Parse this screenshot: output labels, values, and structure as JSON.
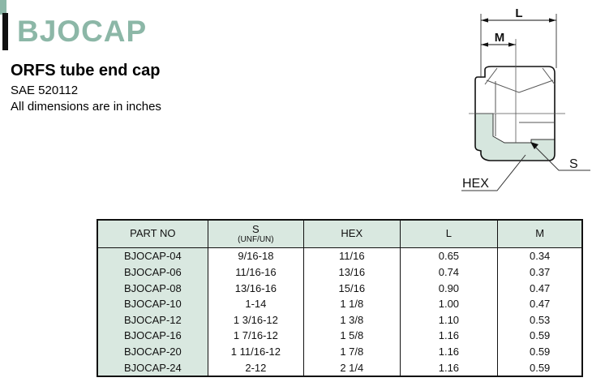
{
  "colors": {
    "accent_green": "#8cb7a7",
    "pale_green_fill": "#d6e6de",
    "table_green": "#d9e8e0",
    "bar_black": "#111111",
    "line_color": "#222222"
  },
  "logo": {
    "brand": "BJOCAP"
  },
  "header": {
    "title": "ORFS tube end cap",
    "spec": "SAE 520112",
    "note": "All dimensions are in inches"
  },
  "drawing": {
    "labels": {
      "length": "L",
      "depth": "M",
      "hex": "HEX",
      "thread": "S"
    }
  },
  "table": {
    "columns": [
      {
        "label": "PART NO",
        "sublabel": ""
      },
      {
        "label": "S",
        "sublabel": "(UNF/UN)"
      },
      {
        "label": "HEX",
        "sublabel": ""
      },
      {
        "label": "L",
        "sublabel": ""
      },
      {
        "label": "M",
        "sublabel": ""
      }
    ],
    "rows": [
      [
        "BJOCAP-04",
        "9/16-18",
        "11/16",
        "0.65",
        "0.34"
      ],
      [
        "BJOCAP-06",
        "11/16-16",
        "13/16",
        "0.74",
        "0.37"
      ],
      [
        "BJOCAP-08",
        "13/16-16",
        "15/16",
        "0.90",
        "0.47"
      ],
      [
        "BJOCAP-10",
        "1-14",
        "1 1/8",
        "1.00",
        "0.47"
      ],
      [
        "BJOCAP-12",
        "1 3/16-12",
        "1 3/8",
        "1.10",
        "0.53"
      ],
      [
        "BJOCAP-16",
        "1 7/16-12",
        "1 5/8",
        "1.16",
        "0.59"
      ],
      [
        "BJOCAP-20",
        "1 11/16-12",
        "1 7/8",
        "1.16",
        "0.59"
      ],
      [
        "BJOCAP-24",
        "2-12",
        "2 1/4",
        "1.16",
        "0.59"
      ]
    ]
  }
}
